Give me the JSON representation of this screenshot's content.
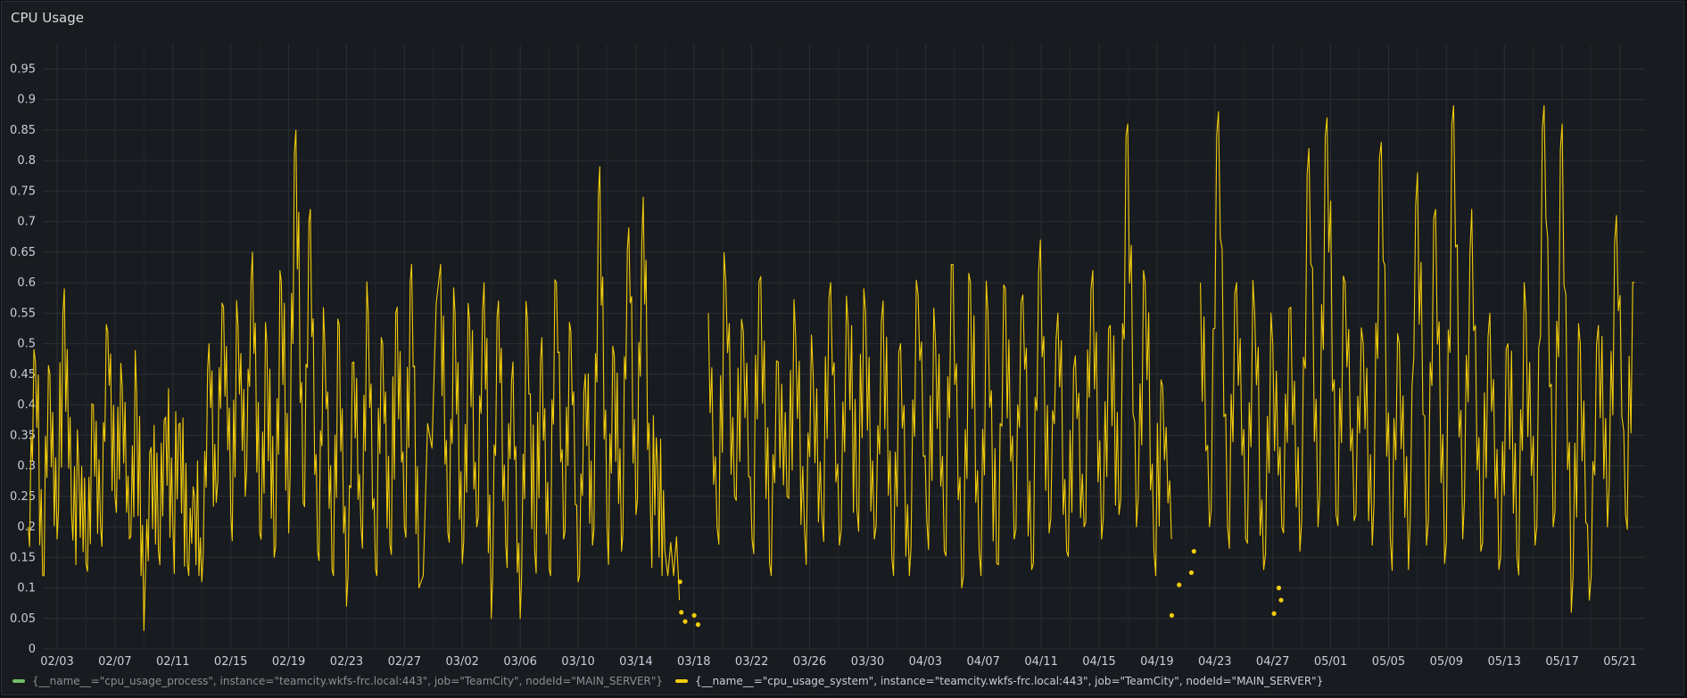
{
  "panel": {
    "title": "CPU Usage"
  },
  "colors": {
    "background": "#181b1f",
    "grid": "#2c2f35",
    "process": "#73bf69",
    "system": "#f2cc0c"
  },
  "legend": [
    {
      "label": "{__name__=\"cpu_usage_process\", instance=\"teamcity.wkfs-frc.local:443\", job=\"TeamCity\", nodeId=\"MAIN_SERVER\"}",
      "color": "#73bf69",
      "dimmed": true
    },
    {
      "label": "{__name__=\"cpu_usage_system\", instance=\"teamcity.wkfs-frc.local:443\", job=\"TeamCity\", nodeId=\"MAIN_SERVER\"}",
      "color": "#f2cc0c",
      "dimmed": false
    }
  ],
  "chart_data": {
    "type": "line",
    "title": "CPU Usage",
    "xlabel": "",
    "ylabel": "",
    "x_range": [
      "02/01",
      "05/23"
    ],
    "x_ticks": [
      "02/03",
      "02/07",
      "02/11",
      "02/15",
      "02/19",
      "02/23",
      "02/27",
      "03/02",
      "03/06",
      "03/10",
      "03/14",
      "03/18",
      "03/22",
      "03/26",
      "03/30",
      "04/03",
      "04/07",
      "04/11",
      "04/15",
      "04/19",
      "04/23",
      "04/27",
      "05/01",
      "05/05",
      "05/09",
      "05/13",
      "05/17",
      "05/21"
    ],
    "y_ticks": [
      "0",
      "0.05",
      "0.1",
      "0.15",
      "0.2",
      "0.25",
      "0.3",
      "0.35",
      "0.4",
      "0.45",
      "0.5",
      "0.55",
      "0.6",
      "0.65",
      "0.7",
      "0.75",
      "0.8",
      "0.85",
      "0.9",
      "0.95"
    ],
    "ylim": [
      0,
      0.99
    ],
    "grid": true,
    "legend_position": "bottom-left",
    "series": [
      {
        "name": "{__name__=\"cpu_usage_process\", instance=\"teamcity.wkfs-frc.local:443\", job=\"TeamCity\", nodeId=\"MAIN_SERVER\"}",
        "color": "#73bf69",
        "points": []
      },
      {
        "name": "{__name__=\"cpu_usage_system\", instance=\"teamcity.wkfs-frc.local:443\", job=\"TeamCity\", nodeId=\"MAIN_SERVER\"}",
        "color": "#f2cc0c",
        "points": [
          [
            "02/01",
            0.2
          ],
          [
            "02/02",
            0.47
          ],
          [
            "02/02",
            0.12
          ],
          [
            "02/03",
            0.45
          ],
          [
            "02/03",
            0.18
          ],
          [
            "02/04",
            0.59
          ],
          [
            "02/04",
            0.22
          ],
          [
            "02/05",
            0.3
          ],
          [
            "02/05",
            0.14
          ],
          [
            "02/06",
            0.4
          ],
          [
            "02/06",
            0.2
          ],
          [
            "02/07",
            0.52
          ],
          [
            "02/07",
            0.25
          ],
          [
            "02/08",
            0.43
          ],
          [
            "02/08",
            0.18
          ],
          [
            "02/09",
            0.42
          ],
          [
            "02/09",
            0.03
          ],
          [
            "02/10",
            0.33
          ],
          [
            "02/10",
            0.16
          ],
          [
            "02/11",
            0.38
          ],
          [
            "02/11",
            0.2
          ],
          [
            "02/12",
            0.37
          ],
          [
            "02/12",
            0.14
          ],
          [
            "02/13",
            0.25
          ],
          [
            "02/13",
            0.11
          ],
          [
            "02/14",
            0.5
          ],
          [
            "02/14",
            0.24
          ],
          [
            "02/15",
            0.56
          ],
          [
            "02/15",
            0.22
          ],
          [
            "02/16",
            0.53
          ],
          [
            "02/16",
            0.25
          ],
          [
            "02/17",
            0.65
          ],
          [
            "02/17",
            0.19
          ],
          [
            "02/18",
            0.5
          ],
          [
            "02/18",
            0.15
          ],
          [
            "02/19",
            0.6
          ],
          [
            "02/19",
            0.19
          ],
          [
            "02/20",
            0.85
          ],
          [
            "02/20",
            0.24
          ],
          [
            "02/21",
            0.72
          ],
          [
            "02/21",
            0.16
          ],
          [
            "02/22",
            0.5
          ],
          [
            "02/22",
            0.13
          ],
          [
            "02/23",
            0.53
          ],
          [
            "02/23",
            0.07
          ],
          [
            "02/24",
            0.47
          ],
          [
            "02/24",
            0.2
          ],
          [
            "02/25",
            0.55
          ],
          [
            "02/25",
            0.13
          ],
          [
            "02/26",
            0.5
          ],
          [
            "02/26",
            0.17
          ],
          [
            "02/27",
            0.56
          ],
          [
            "02/27",
            0.2
          ],
          [
            "02/28",
            0.63
          ],
          [
            "02/28",
            0.1
          ],
          [
            "03/01",
            0.63
          ],
          [
            "03/01",
            0.19
          ],
          [
            "03/02",
            0.55
          ],
          [
            "03/02",
            0.14
          ],
          [
            "03/03",
            0.54
          ],
          [
            "03/03",
            0.2
          ],
          [
            "03/04",
            0.6
          ],
          [
            "03/04",
            0.05
          ],
          [
            "03/05",
            0.57
          ],
          [
            "03/05",
            0.17
          ],
          [
            "03/06",
            0.47
          ],
          [
            "03/06",
            0.05
          ],
          [
            "03/07",
            0.54
          ],
          [
            "03/07",
            0.16
          ],
          [
            "03/08",
            0.51
          ],
          [
            "03/08",
            0.13
          ],
          [
            "03/09",
            0.6
          ],
          [
            "03/09",
            0.18
          ],
          [
            "03/10",
            0.52
          ],
          [
            "03/10",
            0.11
          ],
          [
            "03/11",
            0.45
          ],
          [
            "03/11",
            0.17
          ],
          [
            "03/12",
            0.79
          ],
          [
            "03/12",
            0.2
          ],
          [
            "03/13",
            0.48
          ],
          [
            "03/13",
            0.16
          ],
          [
            "03/14",
            0.69
          ],
          [
            "03/14",
            0.22
          ],
          [
            "03/15",
            0.74
          ],
          [
            "03/15",
            0.23
          ],
          [
            "03/16",
            0.3
          ],
          [
            "03/16",
            0.16
          ],
          [
            "03/17",
            0.08
          ]
        ],
        "segments": [
          {
            "from": "03/19",
            "to": "04/20",
            "values": [
              0.55,
              0.2,
              0.6,
              0.25,
              0.52,
              0.18,
              0.61,
              0.14,
              0.47,
              0.25,
              0.51,
              0.2,
              0.45,
              0.22,
              0.6,
              0.17,
              0.53,
              0.23,
              0.55,
              0.18,
              0.57,
              0.15,
              0.5,
              0.12,
              0.58,
              0.21,
              0.5,
              0.16,
              0.63,
              0.1,
              0.6,
              0.16,
              0.55,
              0.14,
              0.59,
              0.18,
              0.58,
              0.13,
              0.67,
              0.19,
              0.55,
              0.16,
              0.48,
              0.2,
              0.62,
              0.18,
              0.53,
              0.22,
              0.86,
              0.2,
              0.6,
              0.16,
              0.43,
              0.18
            ]
          },
          {
            "from": "04/22",
            "to": "05/22",
            "values": [
              0.6,
              0.2,
              0.88,
              0.2,
              0.6,
              0.18,
              0.55,
              0.13,
              0.5,
              0.2,
              0.56,
              0.16,
              0.82,
              0.2,
              0.87,
              0.22,
              0.6,
              0.21,
              0.5,
              0.17,
              0.83,
              0.18,
              0.5,
              0.13,
              0.78,
              0.17,
              0.72,
              0.14,
              0.89,
              0.18,
              0.72,
              0.16,
              0.55,
              0.13,
              0.5,
              0.15,
              0.55,
              0.17,
              0.89,
              0.2,
              0.86,
              0.06,
              0.5,
              0.08,
              0.53,
              0.2,
              0.71,
              0.22,
              0.6
            ]
          }
        ],
        "dots": [
          [
            "03/17",
            0.11
          ],
          [
            "03/17",
            0.045
          ],
          [
            "03/17",
            0.06
          ],
          [
            "03/18",
            0.04
          ],
          [
            "03/18",
            0.055
          ],
          [
            "04/20",
            0.105
          ],
          [
            "04/20",
            0.055
          ],
          [
            "04/21",
            0.16
          ],
          [
            "04/21",
            0.125
          ],
          [
            "04/27",
            0.1
          ],
          [
            "04/27",
            0.058
          ],
          [
            "04/27",
            0.08
          ]
        ]
      }
    ]
  }
}
